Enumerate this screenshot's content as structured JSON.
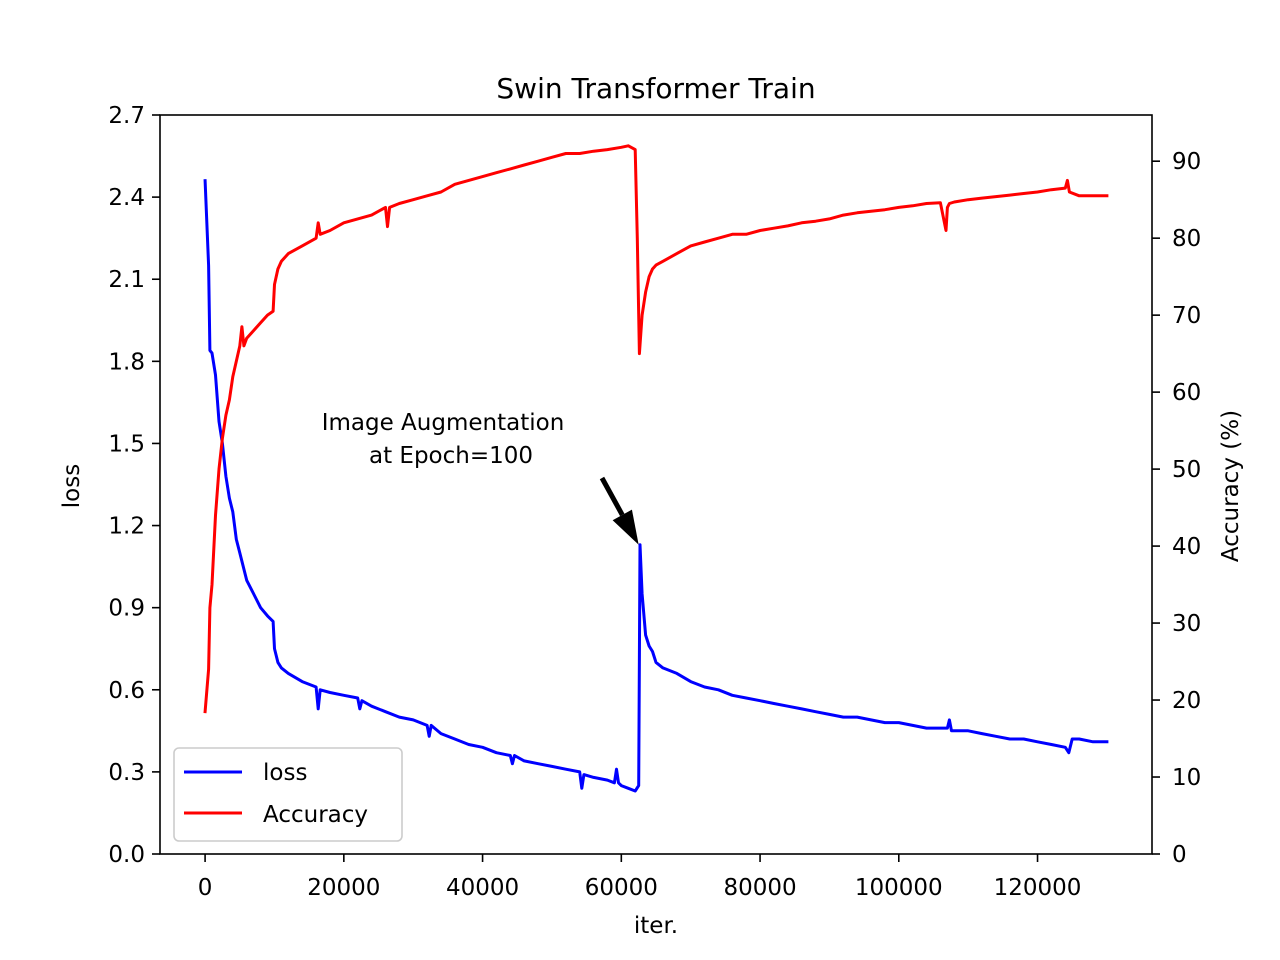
{
  "chart_data": {
    "type": "line",
    "title": "Swin Transformer Train",
    "xlabel": "iter.",
    "ylabel": "loss",
    "y2label": "Accuracy (%)",
    "xlim": [
      -6500,
      136500
    ],
    "ylim": [
      0,
      2.7
    ],
    "y2lim": [
      0,
      96
    ],
    "x_ticks": [
      0,
      20000,
      40000,
      60000,
      80000,
      100000,
      120000
    ],
    "y_ticks": [
      0.0,
      0.3,
      0.6,
      0.9,
      1.2,
      1.5,
      1.8,
      2.1,
      2.4,
      2.7
    ],
    "y_tick_labels": [
      "0.0",
      "0.3",
      "0.6",
      "0.9",
      "1.2",
      "1.5",
      "1.8",
      "2.1",
      "2.4",
      "2.7"
    ],
    "y2_ticks": [
      0,
      10,
      20,
      30,
      40,
      50,
      60,
      70,
      80,
      90
    ],
    "legend_position": "lower-left",
    "series": [
      {
        "name": "loss",
        "axis": "left",
        "color": "#0000ff",
        "x": [
          0,
          500,
          700,
          1000,
          1500,
          2000,
          2500,
          3000,
          3500,
          4000,
          4500,
          5000,
          6000,
          7000,
          8000,
          9000,
          9800,
          10000,
          10500,
          11000,
          12000,
          14000,
          16000,
          16300,
          16600,
          18000,
          20000,
          22000,
          22300,
          22600,
          24000,
          26000,
          28000,
          30000,
          32000,
          32300,
          32600,
          34000,
          36000,
          38000,
          40000,
          42000,
          44000,
          44300,
          44600,
          46000,
          48000,
          50000,
          52000,
          54000,
          54300,
          54600,
          56000,
          58000,
          59000,
          59300,
          59600,
          60000,
          61000,
          62000,
          62500,
          62700,
          63000,
          63500,
          64000,
          64500,
          65000,
          66000,
          68000,
          70000,
          72000,
          74000,
          76000,
          78000,
          80000,
          82000,
          84000,
          86000,
          88000,
          90000,
          92000,
          94000,
          96000,
          98000,
          100000,
          102000,
          104000,
          106000,
          107000,
          107300,
          107600,
          110000,
          112000,
          114000,
          116000,
          118000,
          120000,
          122000,
          124000,
          124500,
          125000,
          126000,
          128000,
          130000
        ],
        "y": [
          2.46,
          2.15,
          1.84,
          1.83,
          1.75,
          1.58,
          1.5,
          1.38,
          1.3,
          1.25,
          1.15,
          1.1,
          1.0,
          0.95,
          0.9,
          0.87,
          0.85,
          0.75,
          0.7,
          0.68,
          0.66,
          0.63,
          0.61,
          0.53,
          0.6,
          0.59,
          0.58,
          0.57,
          0.53,
          0.56,
          0.54,
          0.52,
          0.5,
          0.49,
          0.47,
          0.43,
          0.47,
          0.44,
          0.42,
          0.4,
          0.39,
          0.37,
          0.36,
          0.33,
          0.36,
          0.34,
          0.33,
          0.32,
          0.31,
          0.3,
          0.24,
          0.29,
          0.28,
          0.27,
          0.26,
          0.31,
          0.26,
          0.25,
          0.24,
          0.23,
          0.25,
          1.13,
          0.95,
          0.8,
          0.76,
          0.74,
          0.7,
          0.68,
          0.66,
          0.63,
          0.61,
          0.6,
          0.58,
          0.57,
          0.56,
          0.55,
          0.54,
          0.53,
          0.52,
          0.51,
          0.5,
          0.5,
          0.49,
          0.48,
          0.48,
          0.47,
          0.46,
          0.46,
          0.46,
          0.49,
          0.45,
          0.45,
          0.44,
          0.43,
          0.42,
          0.42,
          0.41,
          0.4,
          0.39,
          0.37,
          0.42,
          0.42,
          0.41,
          0.41
        ]
      },
      {
        "name": "Accuracy",
        "axis": "right",
        "color": "#ff0000",
        "x": [
          0,
          500,
          700,
          1000,
          1500,
          2000,
          2500,
          3000,
          3500,
          4000,
          4500,
          5000,
          5300,
          5600,
          6000,
          7000,
          8000,
          9000,
          9800,
          10000,
          10500,
          11000,
          12000,
          14000,
          16000,
          16300,
          16600,
          18000,
          20000,
          22000,
          24000,
          26000,
          26300,
          26600,
          28000,
          30000,
          32000,
          34000,
          36000,
          38000,
          40000,
          42000,
          44000,
          46000,
          48000,
          50000,
          52000,
          54000,
          56000,
          58000,
          60000,
          61000,
          62000,
          62300,
          62600,
          63000,
          63500,
          64000,
          64500,
          65000,
          66000,
          68000,
          70000,
          72000,
          74000,
          76000,
          78000,
          80000,
          82000,
          84000,
          86000,
          88000,
          90000,
          92000,
          94000,
          96000,
          98000,
          100000,
          102000,
          104000,
          106000,
          106800,
          107000,
          107300,
          108000,
          110000,
          112000,
          114000,
          116000,
          118000,
          120000,
          122000,
          124000,
          124300,
          124600,
          126000,
          128000,
          130000
        ],
        "y": [
          18.5,
          24,
          32,
          35,
          44,
          50,
          54,
          57,
          59,
          62,
          64,
          66,
          68.5,
          66,
          67,
          68,
          69,
          70,
          70.5,
          74,
          76,
          77,
          78,
          79,
          80,
          82,
          80.5,
          81,
          82,
          82.5,
          83,
          84,
          81.5,
          84,
          84.5,
          85,
          85.5,
          86,
          87,
          87.5,
          88,
          88.5,
          89,
          89.5,
          90,
          90.5,
          91,
          91,
          91.3,
          91.5,
          91.8,
          92,
          91.5,
          80,
          65,
          70,
          73,
          75,
          76,
          76.5,
          77,
          78,
          79,
          79.5,
          80,
          80.5,
          80.5,
          81,
          81.3,
          81.6,
          82,
          82.2,
          82.5,
          83,
          83.3,
          83.5,
          83.7,
          84,
          84.2,
          84.5,
          84.6,
          81,
          84,
          84.5,
          84.7,
          85,
          85.2,
          85.4,
          85.6,
          85.8,
          86,
          86.3,
          86.5,
          87.5,
          86,
          85.5,
          85.5,
          85.5
        ]
      }
    ],
    "annotation": {
      "text_line1": "Image Augmentation",
      "text_line2": "at Epoch=100",
      "arrow_to_x": 62500,
      "arrow_to_y": 1.13
    }
  }
}
